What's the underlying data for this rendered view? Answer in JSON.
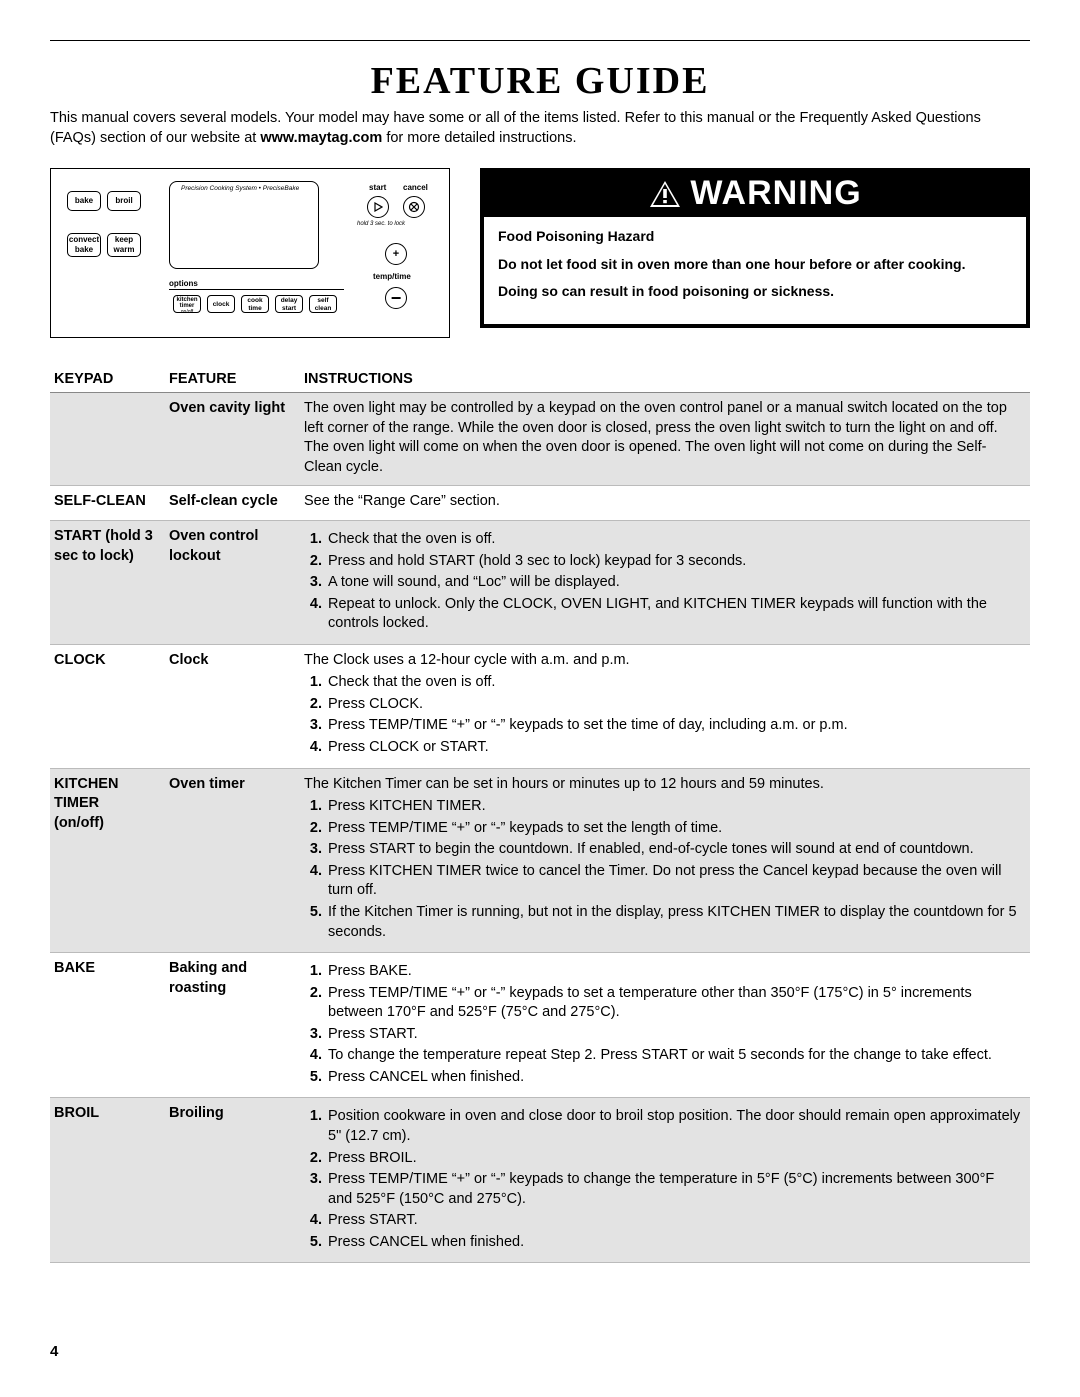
{
  "title": "FEATURE GUIDE",
  "intro_pre": "This manual covers several models. Your model may have some or all of the items listed. Refer to this manual or the Frequently Asked Questions (FAQs) section of our website at ",
  "intro_bold": "www.maytag.com",
  "intro_post": " for more detailed instructions.",
  "page_number": "4",
  "panel": {
    "precision": "Precision Cooking System • PreciseBake",
    "bake": "bake",
    "broil": "broil",
    "convect_bake_top": "convect",
    "convect_bake_bot": "bake",
    "keep_warm_top": "keep",
    "keep_warm_bot": "warm",
    "options": "options",
    "kitchen_timer_top": "kitchen",
    "kitchen_timer_mid": "timer",
    "kitchen_timer_bot": "on/off",
    "clock": "clock",
    "cook_time_top": "cook",
    "cook_time_bot": "time",
    "delay_start_top": "delay",
    "delay_start_bot": "start",
    "self_clean_top": "self",
    "self_clean_bot": "clean",
    "start": "start",
    "cancel": "cancel",
    "hold_note": "hold 3 sec. to lock",
    "temp_time": "temp/time",
    "plus": "+",
    "minus": "−"
  },
  "warning": {
    "head": "WARNING",
    "hazard": "Food Poisoning Hazard",
    "line1": "Do not let food sit in oven more than one hour before or after cooking.",
    "line2": "Doing so can result in food poisoning or sickness."
  },
  "table": {
    "headers": {
      "keypad": "KEYPAD",
      "feature": "FEATURE",
      "instructions": "INSTRUCTIONS"
    },
    "rows": [
      {
        "shade": true,
        "keypad": "",
        "feature": "Oven cavity light",
        "text": "The oven light may be controlled by a keypad on the oven control panel or a manual switch located on the top left corner of the range. While the oven door is closed, press the oven light switch to turn the light on and off. The oven light will come on when the oven door is opened. The oven light will not come on during the Self-Clean cycle."
      },
      {
        "shade": false,
        "keypad": "SELF-CLEAN",
        "feature": "Self-clean cycle",
        "text": "See the “Range Care” section."
      },
      {
        "shade": true,
        "keypad": "START (hold 3 sec to lock)",
        "feature": "Oven control lockout",
        "steps": [
          "Check that the oven is off.",
          "Press and hold START (hold 3 sec to lock) keypad for 3 seconds.",
          "A tone will sound, and “Loc” will be displayed.",
          "Repeat to unlock. Only the CLOCK, OVEN LIGHT, and KITCHEN TIMER keypads will function with the controls locked."
        ]
      },
      {
        "shade": false,
        "keypad": "CLOCK",
        "feature": "Clock",
        "text": "The Clock uses a 12-hour cycle with a.m. and p.m.",
        "steps": [
          "Check that the oven is off.",
          "Press CLOCK.",
          "Press TEMP/TIME “+” or “-” keypads to set the time of day, including a.m. or p.m.",
          "Press CLOCK or START."
        ]
      },
      {
        "shade": true,
        "keypad_html": "KITCHEN<br>TIMER<br>(on/off)",
        "feature": "Oven timer",
        "text": "The Kitchen Timer can be set in hours or minutes up to 12 hours and 59 minutes.",
        "steps": [
          "Press KITCHEN TIMER.",
          "Press TEMP/TIME “+” or “-” keypads to set the length of time.",
          "Press START to begin the countdown. If enabled, end-of-cycle tones will sound at end of countdown.",
          "Press KITCHEN TIMER twice to cancel the Timer. Do not press the Cancel keypad because the oven will turn off.",
          "If the Kitchen Timer is running, but not in the display, press KITCHEN TIMER to display the countdown for 5 seconds."
        ]
      },
      {
        "shade": false,
        "keypad": "BAKE",
        "feature": "Baking and roasting",
        "steps": [
          "Press BAKE.",
          "Press TEMP/TIME “+” or “-” keypads to set a temperature other than 350°F (175°C) in 5° increments between 170°F and 525°F (75°C and 275°C).",
          "Press START.",
          "To change the temperature repeat Step 2. Press START or wait 5 seconds for the change to take effect.",
          "Press CANCEL when finished."
        ]
      },
      {
        "shade": true,
        "keypad": "BROIL",
        "feature": "Broiling",
        "steps": [
          "Position cookware in oven and close door to broil stop position. The door should remain open approximately 5\" (12.7 cm).",
          "Press BROIL.",
          "Press TEMP/TIME “+” or “-” keypads to change the temperature in 5°F (5°C) increments between 300°F and 525°F (150°C and 275°C).",
          "Press START.",
          "Press CANCEL when finished."
        ]
      }
    ]
  }
}
